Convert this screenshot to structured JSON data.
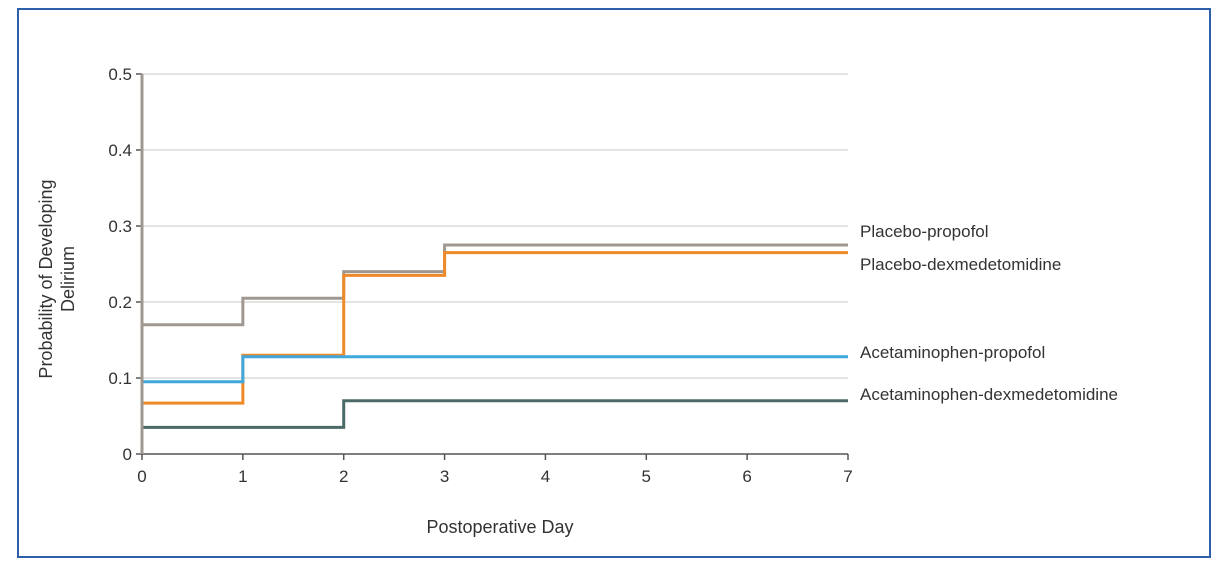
{
  "chart_data": {
    "type": "line",
    "step": true,
    "title": "",
    "xlabel": "Postoperative Day",
    "ylabel_lines": [
      "Probability of Developing",
      "Delirium"
    ],
    "xlim": [
      0,
      7
    ],
    "ylim": [
      0,
      0.5
    ],
    "x_ticks": [
      0,
      1,
      2,
      3,
      4,
      5,
      6,
      7
    ],
    "x_tick_labels": [
      "0",
      "1",
      "2",
      "3",
      "4",
      "5",
      "6",
      "7"
    ],
    "y_ticks": [
      0,
      0.1,
      0.2,
      0.3,
      0.4,
      0.5
    ],
    "y_tick_labels": [
      "0",
      "0.1",
      "0.2",
      "0.3",
      "0.4",
      "0.5"
    ],
    "grid": "horizontal",
    "legend": "right-inline",
    "series": [
      {
        "name": "Placebo-propofol",
        "color": "#a09890",
        "x": [
          0,
          1,
          2,
          3,
          7
        ],
        "y": [
          0.17,
          0.205,
          0.24,
          0.275,
          0.275
        ]
      },
      {
        "name": "Placebo-dexmedetomidine",
        "color": "#ee8a2a",
        "x": [
          0,
          1,
          2,
          3,
          7
        ],
        "y": [
          0.067,
          0.13,
          0.235,
          0.265,
          0.265
        ]
      },
      {
        "name": "Acetaminophen-propofol",
        "color": "#3fa7dc",
        "x": [
          0,
          1,
          7
        ],
        "y": [
          0.095,
          0.128,
          0.128
        ]
      },
      {
        "name": "Acetaminophen-dexmedetomidine",
        "color": "#4c6a68",
        "x": [
          0,
          2,
          7
        ],
        "y": [
          0.035,
          0.07,
          0.07
        ]
      }
    ]
  }
}
